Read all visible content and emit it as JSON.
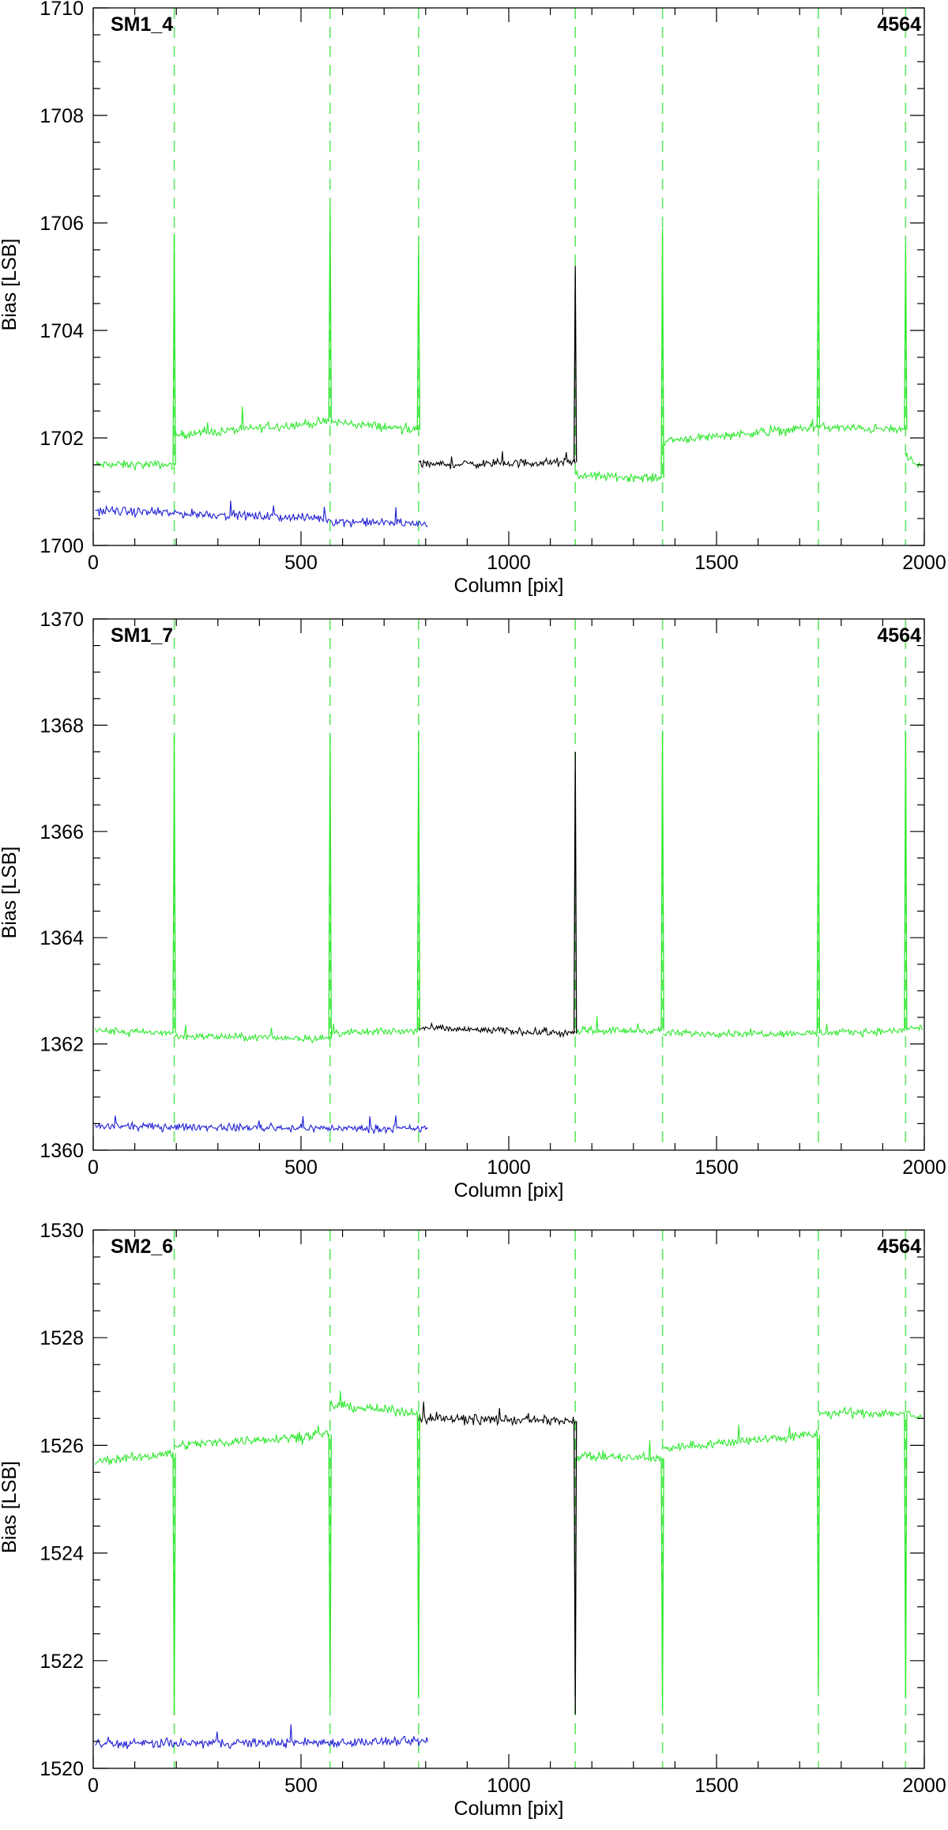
{
  "chart_data": [
    {
      "type": "line",
      "panel_label": "SM1_4",
      "run_label": "4564",
      "xlabel": "Column [pix]",
      "ylabel": "Bias [LSB]",
      "xlim": [
        0,
        2000
      ],
      "ylim": [
        1700,
        1710
      ],
      "xticks": [
        0,
        500,
        1000,
        1500,
        2000
      ],
      "yticks": [
        1700,
        1702,
        1704,
        1706,
        1708,
        1710
      ],
      "boundaries": [
        195,
        570,
        783,
        1160,
        1370,
        1745,
        1955
      ],
      "green_segments": [
        {
          "x": [
            5,
            192
          ],
          "level": [
            1701.5,
            1701.5
          ]
        },
        {
          "x": [
            196,
            568
          ],
          "level": [
            1702.05,
            1702.3
          ]
        },
        {
          "x": [
            571,
            781
          ],
          "level": [
            1702.3,
            1702.15
          ]
        },
        {
          "x": [
            1162,
            1368
          ],
          "level": [
            1701.3,
            1701.25
          ]
        },
        {
          "x": [
            1371,
            1743
          ],
          "level": [
            1701.95,
            1702.2
          ]
        },
        {
          "x": [
            1746,
            1953
          ],
          "level": [
            1702.2,
            1702.15
          ]
        },
        {
          "x": [
            1956,
            1995
          ],
          "level": [
            1701.6,
            1701.5
          ]
        }
      ],
      "black_segment": {
        "x": [
          783,
          1160
        ],
        "level": [
          1701.5,
          1701.55
        ]
      },
      "blue_segments": [
        {
          "x": [
            5,
            568
          ],
          "level": [
            1700.65,
            1700.5
          ]
        },
        {
          "x": [
            570,
            805
          ],
          "level": [
            1700.45,
            1700.4
          ]
        }
      ],
      "spikes": [
        {
          "x": 195,
          "peak": 1705.8
        },
        {
          "x": 570,
          "peak": 1706.3
        },
        {
          "x": 783,
          "peak": 1705.6
        },
        {
          "x": 1160,
          "peak": 1705.2,
          "color": "black"
        },
        {
          "x": 1370,
          "peak": 1705.9
        },
        {
          "x": 1745,
          "peak": 1706.6
        },
        {
          "x": 1955,
          "peak": 1705.6
        }
      ],
      "noise_amp": 0.12
    },
    {
      "type": "line",
      "panel_label": "SM1_7",
      "run_label": "4564",
      "xlabel": "Column [pix]",
      "ylabel": "Bias [LSB]",
      "xlim": [
        0,
        2000
      ],
      "ylim": [
        1360,
        1370
      ],
      "xticks": [
        0,
        500,
        1000,
        1500,
        2000
      ],
      "yticks": [
        1360,
        1362,
        1364,
        1366,
        1368,
        1370
      ],
      "boundaries": [
        195,
        570,
        783,
        1160,
        1370,
        1745,
        1955
      ],
      "green_segments": [
        {
          "x": [
            5,
            192
          ],
          "level": [
            1362.25,
            1362.2
          ]
        },
        {
          "x": [
            196,
            568
          ],
          "level": [
            1362.15,
            1362.1
          ]
        },
        {
          "x": [
            571,
            781
          ],
          "level": [
            1362.2,
            1362.25
          ]
        },
        {
          "x": [
            1162,
            1368
          ],
          "level": [
            1362.25,
            1362.25
          ]
        },
        {
          "x": [
            1371,
            1743
          ],
          "level": [
            1362.2,
            1362.2
          ]
        },
        {
          "x": [
            1746,
            1953
          ],
          "level": [
            1362.2,
            1362.25
          ]
        },
        {
          "x": [
            1956,
            1995
          ],
          "level": [
            1362.3,
            1362.3
          ]
        }
      ],
      "black_segment": {
        "x": [
          783,
          1160
        ],
        "level": [
          1362.3,
          1362.2
        ]
      },
      "blue_segments": [
        {
          "x": [
            5,
            805
          ],
          "level": [
            1360.45,
            1360.4
          ]
        }
      ],
      "spikes": [
        {
          "x": 195,
          "peak": 1367.8
        },
        {
          "x": 570,
          "peak": 1367.8
        },
        {
          "x": 783,
          "peak": 1367.9
        },
        {
          "x": 1160,
          "peak": 1367.5,
          "color": "black"
        },
        {
          "x": 1370,
          "peak": 1367.9
        },
        {
          "x": 1745,
          "peak": 1367.9
        },
        {
          "x": 1955,
          "peak": 1367.9
        }
      ],
      "noise_amp": 0.1
    },
    {
      "type": "line",
      "panel_label": "SM2_6",
      "run_label": "4564",
      "xlabel": "Column [pix]",
      "ylabel": "Bias [LSB]",
      "xlim": [
        0,
        2000
      ],
      "ylim": [
        1520,
        1530
      ],
      "xticks": [
        0,
        500,
        1000,
        1500,
        2000
      ],
      "yticks": [
        1520,
        1522,
        1524,
        1526,
        1528,
        1530
      ],
      "boundaries": [
        195,
        570,
        783,
        1160,
        1370,
        1745,
        1955
      ],
      "green_segments": [
        {
          "x": [
            5,
            192
          ],
          "level": [
            1525.7,
            1525.85
          ]
        },
        {
          "x": [
            196,
            568
          ],
          "level": [
            1526.0,
            1526.2
          ]
        },
        {
          "x": [
            571,
            781
          ],
          "level": [
            1526.75,
            1526.6
          ]
        },
        {
          "x": [
            1162,
            1368
          ],
          "level": [
            1525.8,
            1525.75
          ]
        },
        {
          "x": [
            1371,
            1743
          ],
          "level": [
            1525.95,
            1526.2
          ]
        },
        {
          "x": [
            1746,
            1953
          ],
          "level": [
            1526.6,
            1526.6
          ]
        },
        {
          "x": [
            1956,
            1995
          ],
          "level": [
            1526.6,
            1526.5
          ]
        }
      ],
      "black_segment": {
        "x": [
          783,
          1160
        ],
        "level": [
          1526.5,
          1526.45
        ]
      },
      "blue_segments": [
        {
          "x": [
            5,
            805
          ],
          "level": [
            1520.45,
            1520.5
          ]
        }
      ],
      "spikes": [
        {
          "x": 195,
          "peak": 1521.0
        },
        {
          "x": 570,
          "peak": 1521.2
        },
        {
          "x": 783,
          "peak": 1521.3
        },
        {
          "x": 1160,
          "peak": 1521.0,
          "color": "black"
        },
        {
          "x": 1370,
          "peak": 1521.1
        },
        {
          "x": 1745,
          "peak": 1521.5
        },
        {
          "x": 1955,
          "peak": 1521.3
        }
      ],
      "noise_amp": 0.13
    }
  ],
  "colors": {
    "green": "#2ee82e",
    "black": "#000000",
    "blue": "#1f1fd6",
    "dashed": "#5fe85f"
  }
}
